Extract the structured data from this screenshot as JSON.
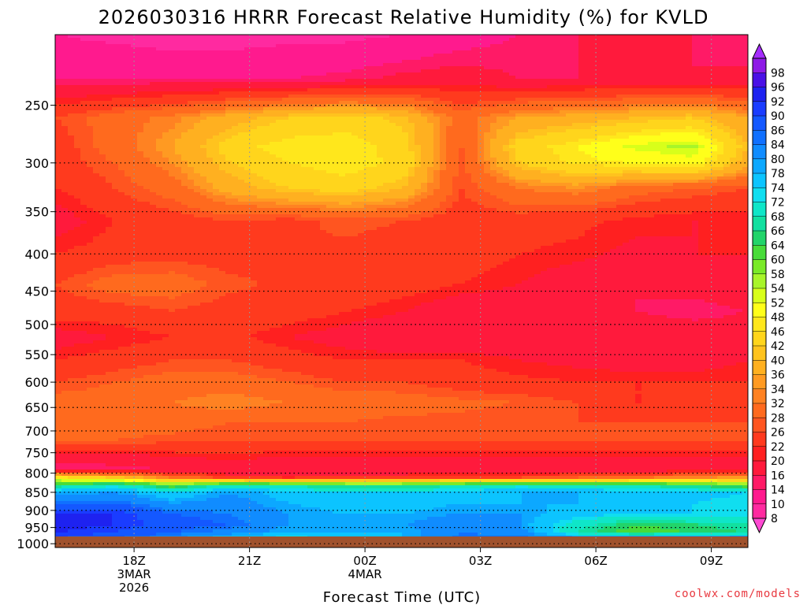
{
  "chart_data": {
    "type": "heatmap",
    "title": "2026030316 HRRR Forecast Relative Humidity (%) for KVLD",
    "xlabel": "Forecast Time (UTC)",
    "ylabel": "Pressure (hPa)",
    "credit": "coolwx.com/models",
    "x_ticks": [
      {
        "hour": 2,
        "lines": [
          "18Z",
          "3MAR",
          "2026"
        ]
      },
      {
        "hour": 5,
        "lines": [
          "21Z"
        ]
      },
      {
        "hour": 8,
        "lines": [
          "00Z",
          "4MAR"
        ]
      },
      {
        "hour": 11,
        "lines": [
          "03Z"
        ]
      },
      {
        "hour": 14,
        "lines": [
          "06Z"
        ]
      },
      {
        "hour": 17,
        "lines": [
          "09Z"
        ]
      }
    ],
    "xlim_hours": [
      -0.05,
      17.95
    ],
    "y_ticks": [
      250,
      300,
      350,
      400,
      450,
      500,
      550,
      600,
      650,
      700,
      750,
      800,
      850,
      900,
      950,
      1000
    ],
    "ylim_hpa": [
      200,
      1012
    ],
    "time_hours": [
      0,
      1.5,
      3,
      4.5,
      6,
      7.5,
      9,
      10.5,
      12,
      13.5,
      15,
      16.5,
      17.95
    ],
    "levels_hpa": [
      200,
      230,
      260,
      285,
      300,
      325,
      360,
      400,
      440,
      480,
      520,
      560,
      600,
      640,
      680,
      720,
      760,
      790,
      810,
      830,
      850,
      880,
      910,
      940,
      965,
      985,
      1000,
      1012
    ],
    "rh": [
      [
        10,
        9,
        8,
        8,
        9,
        9,
        10,
        12,
        14,
        16,
        17,
        16,
        14
      ],
      [
        14,
        14,
        14,
        14,
        14,
        15,
        17,
        18,
        16,
        16,
        16,
        16,
        17
      ],
      [
        26,
        30,
        33,
        38,
        42,
        44,
        41,
        30,
        36,
        38,
        40,
        42,
        36
      ],
      [
        24,
        30,
        36,
        44,
        48,
        48,
        44,
        28,
        44,
        48,
        53,
        55,
        40
      ],
      [
        24,
        28,
        34,
        42,
        46,
        48,
        45,
        27,
        42,
        47,
        48,
        50,
        38
      ],
      [
        22,
        26,
        30,
        38,
        42,
        44,
        40,
        26,
        32,
        34,
        30,
        28,
        26
      ],
      [
        18,
        22,
        24,
        26,
        25,
        27,
        26,
        24,
        24,
        23,
        21,
        20,
        20
      ],
      [
        22,
        24,
        25,
        24,
        26,
        25,
        24,
        24,
        22,
        21,
        19,
        20,
        20
      ],
      [
        26,
        30,
        30,
        27,
        25,
        25,
        24,
        22,
        20,
        17,
        16,
        17,
        18
      ],
      [
        24,
        24,
        26,
        24,
        24,
        22,
        20,
        16,
        17,
        18,
        16,
        15,
        16
      ],
      [
        18,
        20,
        22,
        23,
        20,
        18,
        16,
        16,
        17,
        19,
        19,
        18,
        18
      ],
      [
        22,
        24,
        26,
        26,
        24,
        22,
        22,
        22,
        20,
        19,
        18,
        18,
        20
      ],
      [
        26,
        28,
        30,
        30,
        28,
        26,
        26,
        24,
        23,
        22,
        22,
        22,
        22
      ],
      [
        30,
        30,
        32,
        34,
        32,
        31,
        30,
        29,
        28,
        26,
        22,
        22,
        24
      ],
      [
        32,
        30,
        30,
        28,
        28,
        28,
        27,
        27,
        26,
        26,
        26,
        26,
        26
      ],
      [
        28,
        28,
        27,
        26,
        26,
        26,
        26,
        26,
        26,
        27,
        27,
        27,
        27
      ],
      [
        18,
        18,
        20,
        21,
        20,
        20,
        20,
        20,
        20,
        20,
        20,
        20,
        20
      ],
      [
        14,
        15,
        16,
        16,
        16,
        16,
        16,
        16,
        16,
        16,
        16,
        17,
        17
      ],
      [
        46,
        40,
        30,
        22,
        20,
        22,
        22,
        24,
        24,
        26,
        30,
        32,
        34
      ],
      [
        64,
        70,
        60,
        68,
        66,
        64,
        64,
        66,
        70,
        68,
        66,
        64,
        60
      ],
      [
        78,
        80,
        74,
        80,
        76,
        74,
        74,
        76,
        78,
        78,
        76,
        76,
        74
      ],
      [
        86,
        86,
        80,
        82,
        78,
        76,
        76,
        78,
        78,
        78,
        76,
        74,
        72
      ],
      [
        92,
        92,
        86,
        84,
        80,
        78,
        78,
        80,
        80,
        76,
        74,
        74,
        74
      ],
      [
        94,
        92,
        88,
        86,
        80,
        80,
        80,
        84,
        80,
        70,
        64,
        66,
        68
      ],
      [
        92,
        90,
        86,
        82,
        78,
        78,
        78,
        84,
        82,
        68,
        62,
        64,
        66
      ],
      [
        90,
        86,
        80,
        74,
        72,
        74,
        78,
        86,
        86,
        84,
        84,
        84,
        86
      ],
      [
        88,
        86,
        84,
        80,
        84,
        86,
        88,
        90,
        92,
        92,
        94,
        94,
        94
      ],
      [
        88,
        86,
        84,
        82,
        86,
        88,
        90,
        92,
        94,
        94,
        96,
        96,
        96
      ]
    ],
    "colorbar": {
      "labels": [
        8,
        10,
        14,
        16,
        20,
        22,
        26,
        28,
        32,
        34,
        36,
        40,
        42,
        46,
        48,
        52,
        54,
        58,
        60,
        64,
        66,
        68,
        72,
        74,
        78,
        80,
        84,
        86,
        90,
        92,
        96,
        98
      ],
      "colors": [
        "#ff2aa0",
        "#ff1a8e",
        "#ff1a66",
        "#ff1a3c",
        "#ff2020",
        "#ff3a1e",
        "#ff5520",
        "#ff6a1e",
        "#ff8222",
        "#ff9a22",
        "#ffb020",
        "#ffc31e",
        "#ffd51c",
        "#ffe71c",
        "#ffff1a",
        "#d8ff1a",
        "#a8f52a",
        "#7aea28",
        "#48dc3a",
        "#22d46a",
        "#12e0a0",
        "#0fe6c8",
        "#10def0",
        "#0cc4ff",
        "#0ca8ff",
        "#108cff",
        "#1070ff",
        "#1458ff",
        "#1a3cff",
        "#1e22f0",
        "#4a10e6",
        "#8e1ae6"
      ],
      "extend_top_color": "#a52cff",
      "extend_bottom_color": "#ff4ad2"
    },
    "ground_color": "#a0522d"
  }
}
